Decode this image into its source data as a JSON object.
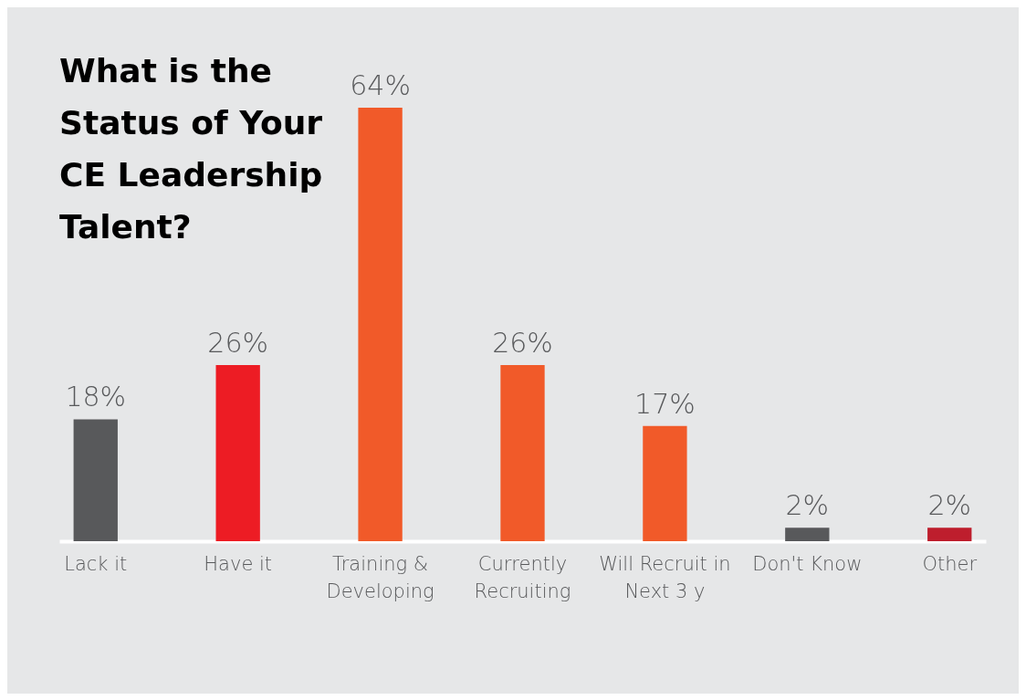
{
  "chart_data": {
    "type": "bar",
    "title": "What is the Status of Your CE Leadership Talent?",
    "categories": [
      "Lack it",
      "Have it",
      "Training & Developing",
      "Currently Recruiting",
      "Will Recruit in Next 3 y",
      "Don't Know",
      "Other"
    ],
    "values": [
      18,
      26,
      64,
      26,
      17,
      2,
      2
    ],
    "colors": [
      "#58595b",
      "#ed1c24",
      "#f15a29",
      "#f15a29",
      "#f15a29",
      "#58595b",
      "#be1e2d"
    ],
    "value_labels": [
      "18%",
      "26%",
      "64%",
      "26%",
      "17%",
      "2%",
      "2%"
    ],
    "grid": false,
    "legend": false
  }
}
